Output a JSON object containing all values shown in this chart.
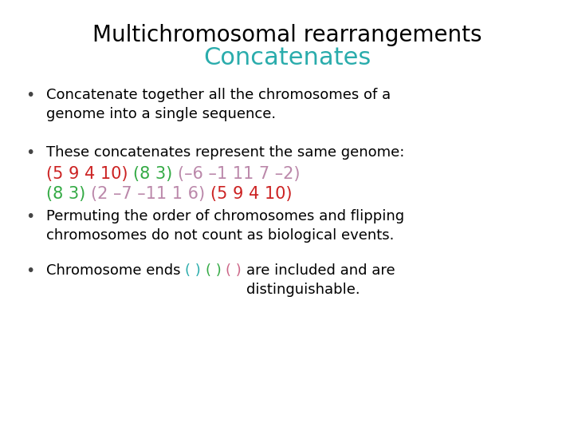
{
  "title_line1": "Multichromosomal rearrangements",
  "title_line2": "Concatenates",
  "title_color": "#000000",
  "subtitle_color": "#2AACAC",
  "bg_color": "#ffffff",
  "bullet_color": "#444444",
  "bullet_char": "•",
  "bullet1_text": "Concatenate together all the chromosomes of a\ngenome into a single sequence.",
  "bullet2_text": "These concatenates represent the same genome:",
  "genome_line1": [
    {
      "text": "(5 9 4 10) ",
      "color": "#CC2222"
    },
    {
      "text": "(8 3) ",
      "color": "#33AA44"
    },
    {
      "text": "(–6 –1 11 7 –2)",
      "color": "#BB88AA"
    }
  ],
  "genome_line2": [
    {
      "text": "(8 3) ",
      "color": "#33AA44"
    },
    {
      "text": "(2 –7 –11 1 6) ",
      "color": "#BB88AA"
    },
    {
      "text": "(5 9 4 10)",
      "color": "#CC2222"
    }
  ],
  "bullet3_text": "Permuting the order of chromosomes and flipping\nchromosomes do not count as biological events.",
  "bullet4_prefix": "Chromosome ends ",
  "bullet4_parens": [
    {
      "text": "( ) ",
      "color": "#2AACAC"
    },
    {
      "text": "( ) ",
      "color": "#33AA44"
    },
    {
      "text": "( ) ",
      "color": "#CC6688"
    }
  ],
  "bullet4_suffix": "are included and are\ndistinguishable.",
  "text_color": "#000000",
  "font_size_title": 20,
  "font_size_subtitle": 22,
  "font_size_body": 13,
  "font_size_genome": 15
}
